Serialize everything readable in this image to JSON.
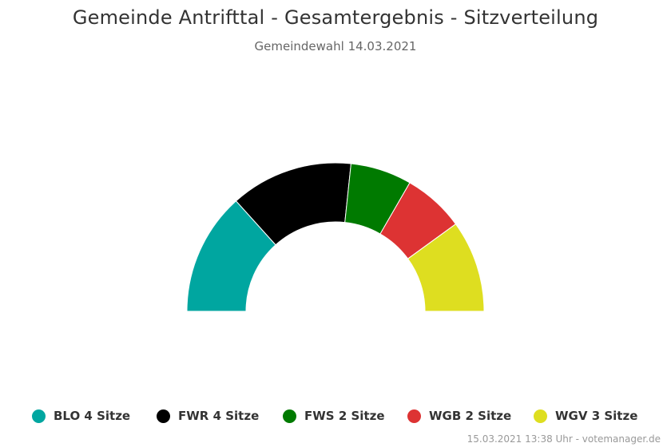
{
  "chart_data": {
    "type": "pie",
    "subtype": "semicircle",
    "title": "Gemeinde Antrifttal - Gesamtergebnis - Sitzverteilung",
    "subtitle": "Gemeindewahl 14.03.2021",
    "unit": "Sitze",
    "series": [
      {
        "name": "BLO",
        "value": 4,
        "color": "#00a6a0",
        "label": "BLO 4 Sitze"
      },
      {
        "name": "FWR",
        "value": 4,
        "color": "#000000",
        "label": "FWR 4 Sitze"
      },
      {
        "name": "FWS",
        "value": 2,
        "color": "#007a00",
        "label": "FWS 2 Sitze"
      },
      {
        "name": "WGB",
        "value": 2,
        "color": "#dd3333",
        "label": "WGB 2 Sitze"
      },
      {
        "name": "WGV",
        "value": 3,
        "color": "#dede20",
        "label": "WGV 3 Sitze"
      }
    ],
    "legend_position": "bottom"
  },
  "credits": "15.03.2021 13:38 Uhr - votemanager.de"
}
